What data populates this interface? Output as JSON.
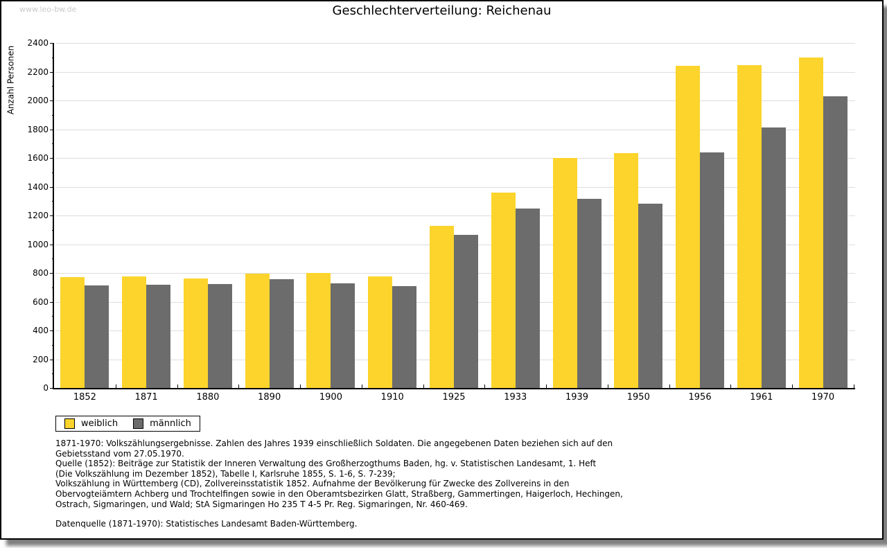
{
  "page": {
    "watermark": "www.leo-bw.de"
  },
  "chart_data": {
    "type": "bar",
    "title": "Geschlechterverteilung: Reichenau",
    "ylabel": "Anzahl Personen",
    "xlabel": "",
    "categories": [
      "1852",
      "1871",
      "1880",
      "1890",
      "1900",
      "1910",
      "1925",
      "1933",
      "1939",
      "1950",
      "1956",
      "1961",
      "1970"
    ],
    "series": [
      {
        "name": "weiblich",
        "color": "#FCD42C",
        "values": [
          770,
          775,
          760,
          795,
          800,
          775,
          1130,
          1360,
          1600,
          1635,
          2240,
          2245,
          2300
        ]
      },
      {
        "name": "männlich",
        "color": "#6C6C6C",
        "values": [
          715,
          720,
          725,
          755,
          730,
          710,
          1065,
          1250,
          1315,
          1280,
          1640,
          1810,
          2030
        ]
      }
    ],
    "ylim": [
      0,
      2400
    ],
    "ytick_major": 200,
    "ytick_minor": 100,
    "grid": true,
    "legend_position": "bottom-left"
  },
  "footnotes": {
    "lines": [
      "1871-1970: Volkszählungsergebnisse. Zahlen des Jahres 1939 einschließlich Soldaten. Die angegebenen Daten beziehen sich auf den",
      "Gebietsstand vom 27.05.1970.",
      "Quelle (1852): Beiträge zur Statistik der Inneren Verwaltung des Großherzogthums Baden, hg. v. Statistischen Landesamt, 1. Heft",
      "(Die Volkszählung im Dezember 1852), Tabelle I, Karlsruhe 1855, S. 1-6, S. 7-239;",
      "Volkszählung in Württemberg (CD), Zollvereinsstatistik 1852. Aufnahme der Bevölkerung für Zwecke des Zollvereins in den",
      "Obervogteiämtern Achberg und Trochtelfingen sowie in den Oberamtsbezirken Glatt, Straßberg, Gammertingen, Haigerloch, Hechingen,",
      "Ostrach, Sigmaringen, und Wald; StA Sigmaringen Ho 235 T 4-5 Pr. Reg. Sigmaringen, Nr. 460-469."
    ],
    "datasource": "Datenquelle (1871-1970): Statistisches Landesamt Baden-Württemberg."
  },
  "colors": {
    "female_bar": "#FCD42C",
    "male_bar": "#6C6C6C",
    "grid": "#DDDDDD",
    "axis": "#000000",
    "watermark_text": "#C9C9C9",
    "page_border": "#000000"
  }
}
